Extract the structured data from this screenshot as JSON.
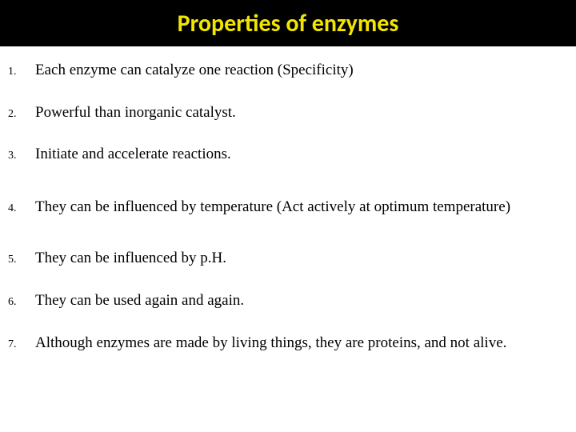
{
  "title": "Properties of enzymes",
  "title_color": "#f2e600",
  "title_bg": "#000000",
  "title_fontsize": 30,
  "body_fontsize": 19,
  "number_fontsize": 14,
  "body_color": "#000000",
  "page_bg": "#ffffff",
  "items": [
    {
      "n": "1.",
      "text": "Each enzyme can catalyze one reaction (Specificity)"
    },
    {
      "n": "2.",
      "text": "Powerful than inorganic catalyst."
    },
    {
      "n": "3.",
      "text": "Initiate and accelerate reactions."
    },
    {
      "n": "4.",
      "text": "They can be influenced by temperature (Act actively at optimum temperature)"
    },
    {
      "n": "5.",
      "text": "They can be influenced by p.H."
    },
    {
      "n": "6.",
      "text": "They can be used again and again."
    },
    {
      "n": "7.",
      "text": "Although enzymes are made by living things, they are proteins, and not alive."
    }
  ]
}
